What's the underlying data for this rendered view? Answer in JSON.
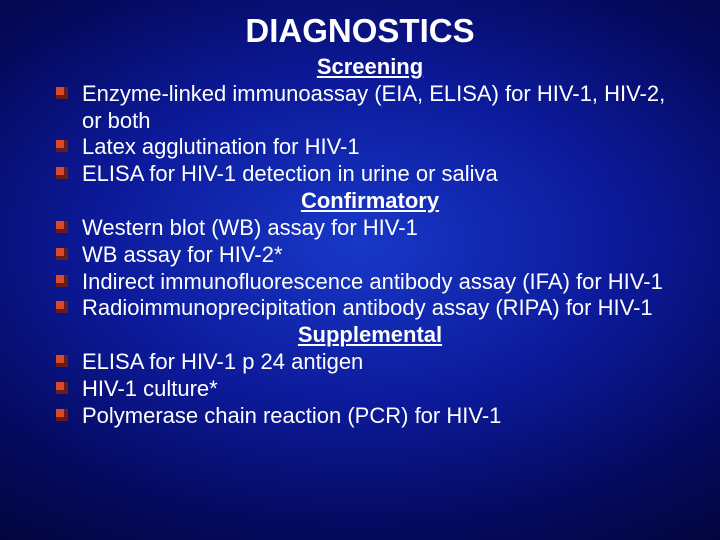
{
  "title": "DIAGNOSTICS",
  "title_fontsize": 33,
  "body_fontsize": 22,
  "line_height": 1.22,
  "colors": {
    "text": "#ffffff",
    "bullet_dark": "#6b1a1a",
    "bullet_light": "#d84a2a",
    "bg_center": "#1838c8",
    "bg_edge": "#010330"
  },
  "sections": [
    {
      "heading": "Screening",
      "items": [
        "Enzyme-linked immunoassay (EIA, ELISA) for HIV-1, HIV-2, or both",
        "Latex agglutination for HIV-1",
        "ELISA for HIV-1 detection in urine or saliva"
      ]
    },
    {
      "heading": "Confirmatory",
      "items": [
        "Western blot (WB) assay for HIV-1",
        "WB assay for HIV-2*",
        "Indirect immunofluorescence antibody assay (IFA) for HIV-1",
        "Radioimmunoprecipitation antibody assay (RIPA) for HIV-1"
      ]
    },
    {
      "heading": "Supplemental",
      "items": [
        "ELISA for HIV-1 p 24 antigen",
        "HIV-1 culture*",
        "Polymerase chain reaction (PCR) for HIV-1"
      ]
    }
  ]
}
